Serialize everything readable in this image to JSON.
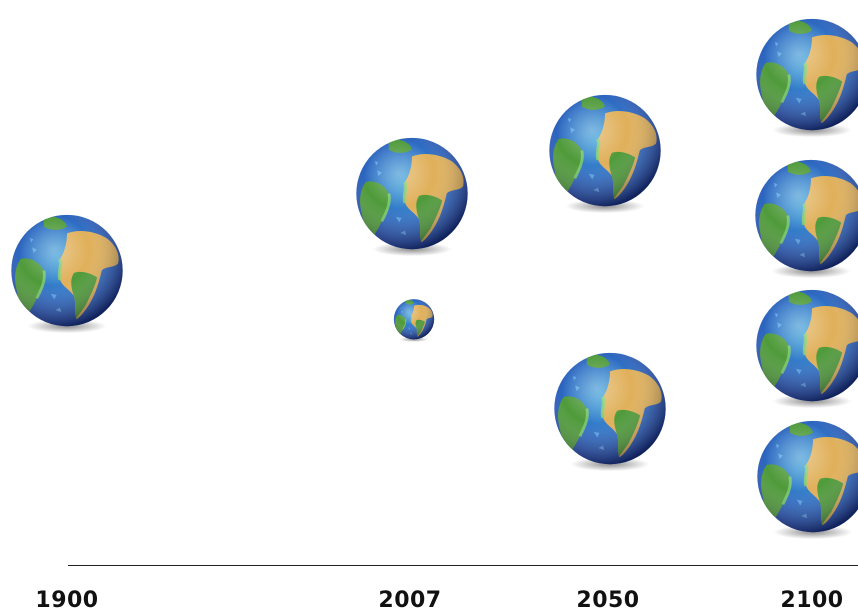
{
  "timeline": {
    "years": [
      {
        "label": "1900",
        "earths": 1
      },
      {
        "label": "2007",
        "earths": 1.2
      },
      {
        "label": "2050",
        "earths": 2
      },
      {
        "label": "2100",
        "earths": 4
      }
    ]
  },
  "colors": {
    "ocean_deep": "#1f3fa8",
    "ocean_shallow": "#3fa3d8",
    "land_desert": "#e0b05a",
    "land_green": "#4f9a3a",
    "coast": "#7fcf6a",
    "axis": "#222222",
    "label": "#111111"
  },
  "icons": {
    "globe": "earth-globe-icon"
  }
}
